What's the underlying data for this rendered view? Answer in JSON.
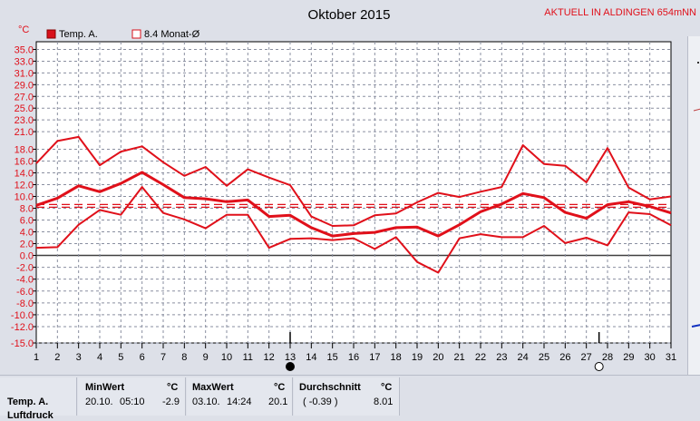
{
  "chart_data": {
    "type": "line",
    "title": "Oktober 2015",
    "station_label": "AKTUELL IN ALDINGEN 654mNN",
    "ylabel": "°C",
    "ylim": [
      -15,
      35
    ],
    "y_ticks": [
      "35.0",
      "33.0",
      "31.0",
      "29.0",
      "27.0",
      "25.0",
      "23.0",
      "21.0",
      "18.0",
      "16.0",
      "14.0",
      "12.0",
      "10.0",
      "8.0",
      "6.0",
      "4.0",
      "2.0",
      "0.0",
      "-2.0",
      "-4.0",
      "-6.0",
      "-8.0",
      "-10.0",
      "-12.0",
      "-15.0"
    ],
    "x": [
      1,
      2,
      3,
      4,
      5,
      6,
      7,
      8,
      9,
      10,
      11,
      12,
      13,
      14,
      15,
      16,
      17,
      18,
      19,
      20,
      21,
      22,
      23,
      24,
      25,
      26,
      27,
      28,
      29,
      30,
      31
    ],
    "legend": [
      {
        "name": "Temp. A.",
        "style": "filled-square"
      },
      {
        "name": "8.4 Monat-Ø",
        "style": "open-square"
      }
    ],
    "series": [
      {
        "name": "Tmax",
        "values": [
          15.6,
          19.4,
          20.1,
          15.3,
          17.6,
          18.5,
          15.8,
          13.5,
          15.0,
          11.8,
          14.6,
          13.2,
          11.9,
          6.6,
          5.0,
          5.1,
          6.8,
          7.1,
          9.0,
          10.6,
          9.9,
          10.8,
          11.6,
          18.7,
          15.5,
          15.2,
          12.4,
          18.2,
          11.5,
          9.5,
          10.0
        ]
      },
      {
        "name": "Tmean",
        "values": [
          8.5,
          9.7,
          11.8,
          10.8,
          12.2,
          14.1,
          12.0,
          9.8,
          9.6,
          9.1,
          9.4,
          6.6,
          6.8,
          4.7,
          3.3,
          3.7,
          3.9,
          4.7,
          4.8,
          3.3,
          5.2,
          7.4,
          8.7,
          10.5,
          9.8,
          7.3,
          6.3,
          8.6,
          9.1,
          8.3,
          7.2
        ]
      },
      {
        "name": "Tmin",
        "values": [
          1.3,
          1.4,
          5.2,
          7.7,
          6.9,
          11.6,
          7.2,
          6.1,
          4.6,
          6.9,
          6.9,
          1.3,
          2.8,
          2.9,
          2.6,
          2.9,
          1.1,
          3.1,
          -1.1,
          -2.9,
          2.9,
          3.6,
          3.1,
          3.1,
          5.0,
          2.1,
          3.0,
          1.7,
          7.3,
          7.0,
          5.1
        ]
      }
    ],
    "reference_lines": [
      {
        "name": "8.4 Monat-Ø",
        "value": 8.4
      }
    ],
    "moon_phases": [
      {
        "day": 13,
        "phase": "new"
      },
      {
        "day": 27.6,
        "phase": "full"
      }
    ],
    "grid": true
  },
  "stats": {
    "row_label": "Temp. A.",
    "row_label_2": "Luftdruck",
    "min": {
      "header": "MinWert",
      "unit": "°C",
      "date": "20.10.",
      "time": "05:10",
      "value": "-2.9"
    },
    "max": {
      "header": "MaxWert",
      "unit": "°C",
      "date": "03.10.",
      "time": "14:24",
      "value": "20.1"
    },
    "avg": {
      "header": "Durchschnitt",
      "unit": "°C",
      "deviation": "( -0.39 )",
      "value": "8.01"
    }
  },
  "colors": {
    "series": "#e0101a",
    "grid": "#8a8fa0",
    "plot_bg": "#ffffff",
    "frame_bg": "#dde0e8"
  }
}
